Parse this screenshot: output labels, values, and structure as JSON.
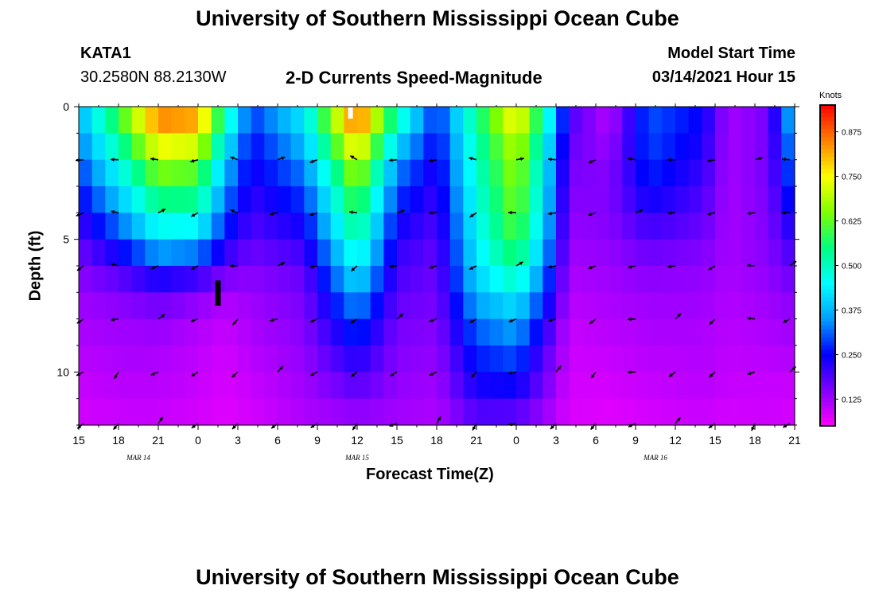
{
  "header": {
    "title": "University of Southern Mississippi Ocean Cube",
    "station": "KATA1",
    "coords": "30.2580N 88.2130W",
    "product": "2-D Currents Speed-Magnitude",
    "model_start_label": "Model Start Time",
    "model_start_value": "03/14/2021 Hour 15"
  },
  "footer": {
    "title": "University of Southern Mississippi Ocean Cube"
  },
  "colorbar": {
    "unit": "Knots",
    "ticks": [
      "0.875",
      "0.750",
      "0.625",
      "0.500",
      "0.375",
      "0.250",
      "0.125"
    ],
    "tick_values": [
      0.875,
      0.75,
      0.625,
      0.5,
      0.375,
      0.25,
      0.125
    ],
    "range": [
      0.05,
      0.95
    ],
    "colors": [
      "#ff00ff",
      "#8000ff",
      "#0000ff",
      "#00a0ff",
      "#00ffff",
      "#00ff80",
      "#80ff00",
      "#ffff00",
      "#ff8000",
      "#ff0000"
    ]
  },
  "chart_data": {
    "type": "heatmap",
    "xlabel": "Forecast Time(Z)",
    "ylabel": "Depth (ft)",
    "x_tick_labels": [
      "15",
      "18",
      "21",
      "0",
      "3",
      "6",
      "9",
      "12",
      "15",
      "18",
      "21",
      "0",
      "3",
      "6",
      "9",
      "12",
      "15",
      "18",
      "21"
    ],
    "x_hours": [
      0,
      3,
      6,
      9,
      12,
      15,
      18,
      21,
      24,
      27,
      30,
      33,
      36,
      39,
      42,
      45,
      48,
      51,
      54
    ],
    "date_labels": [
      {
        "text": "MAR 14",
        "hour": 4.5
      },
      {
        "text": "MAR 15",
        "hour": 21
      },
      {
        "text": "MAR 16",
        "hour": 43.5
      }
    ],
    "y_ticks": [
      "0",
      "5",
      "10"
    ],
    "y_tick_values": [
      0,
      5,
      10
    ],
    "ylim": [
      0,
      12
    ],
    "xlim": [
      0,
      54
    ],
    "keyframes": [
      {
        "h": 0,
        "v": [
          0.38,
          0.34,
          0.3,
          0.26,
          0.22,
          0.18,
          0.15,
          0.13,
          0.12,
          0.11,
          0.1,
          0.09,
          0.08
        ]
      },
      {
        "h": 3,
        "v": [
          0.62,
          0.55,
          0.48,
          0.42,
          0.35,
          0.28,
          0.2,
          0.15,
          0.13,
          0.12,
          0.11,
          0.1,
          0.09
        ]
      },
      {
        "h": 6,
        "v": [
          0.88,
          0.8,
          0.68,
          0.6,
          0.5,
          0.42,
          0.28,
          0.18,
          0.14,
          0.12,
          0.11,
          0.1,
          0.09
        ]
      },
      {
        "h": 9,
        "v": [
          0.85,
          0.78,
          0.65,
          0.58,
          0.5,
          0.4,
          0.25,
          0.15,
          0.12,
          0.1,
          0.1,
          0.09,
          0.08
        ]
      },
      {
        "h": 11,
        "v": [
          0.55,
          0.48,
          0.4,
          0.35,
          0.3,
          0.25,
          0.18,
          0.12,
          0.1,
          0.09,
          0.08,
          0.08,
          0.07
        ]
      },
      {
        "h": 13,
        "v": [
          0.3,
          0.26,
          0.24,
          0.22,
          0.2,
          0.18,
          0.15,
          0.13,
          0.12,
          0.11,
          0.1,
          0.09,
          0.08
        ]
      },
      {
        "h": 17,
        "v": [
          0.45,
          0.4,
          0.35,
          0.3,
          0.26,
          0.22,
          0.18,
          0.16,
          0.15,
          0.14,
          0.13,
          0.12,
          0.11
        ]
      },
      {
        "h": 21,
        "v": [
          0.92,
          0.82,
          0.72,
          0.64,
          0.58,
          0.52,
          0.45,
          0.38,
          0.3,
          0.25,
          0.2,
          0.16,
          0.12
        ]
      },
      {
        "h": 24,
        "v": [
          0.55,
          0.45,
          0.36,
          0.3,
          0.26,
          0.22,
          0.2,
          0.18,
          0.16,
          0.15,
          0.14,
          0.13,
          0.12
        ]
      },
      {
        "h": 27,
        "v": [
          0.28,
          0.25,
          0.23,
          0.21,
          0.2,
          0.18,
          0.17,
          0.16,
          0.15,
          0.14,
          0.13,
          0.12,
          0.11
        ]
      },
      {
        "h": 30,
        "v": [
          0.55,
          0.52,
          0.5,
          0.48,
          0.46,
          0.44,
          0.42,
          0.38,
          0.33,
          0.28,
          0.25,
          0.22,
          0.16
        ]
      },
      {
        "h": 33,
        "v": [
          0.8,
          0.72,
          0.68,
          0.66,
          0.64,
          0.6,
          0.55,
          0.45,
          0.38,
          0.32,
          0.27,
          0.22,
          0.15
        ]
      },
      {
        "h": 35,
        "v": [
          0.55,
          0.5,
          0.46,
          0.44,
          0.42,
          0.4,
          0.35,
          0.3,
          0.25,
          0.2,
          0.18,
          0.15,
          0.12
        ]
      },
      {
        "h": 37,
        "v": [
          0.2,
          0.18,
          0.16,
          0.15,
          0.14,
          0.13,
          0.12,
          0.11,
          0.1,
          0.09,
          0.09,
          0.08,
          0.08
        ]
      },
      {
        "h": 40,
        "v": [
          0.1,
          0.12,
          0.14,
          0.15,
          0.15,
          0.14,
          0.13,
          0.12,
          0.11,
          0.1,
          0.09,
          0.08,
          0.07
        ]
      },
      {
        "h": 43,
        "v": [
          0.3,
          0.3,
          0.28,
          0.26,
          0.22,
          0.18,
          0.15,
          0.13,
          0.12,
          0.11,
          0.1,
          0.09,
          0.08
        ]
      },
      {
        "h": 47,
        "v": [
          0.25,
          0.24,
          0.22,
          0.2,
          0.18,
          0.16,
          0.14,
          0.13,
          0.12,
          0.11,
          0.11,
          0.1,
          0.09
        ]
      },
      {
        "h": 49,
        "v": [
          0.12,
          0.12,
          0.12,
          0.12,
          0.12,
          0.12,
          0.12,
          0.11,
          0.11,
          0.1,
          0.1,
          0.09,
          0.08
        ]
      },
      {
        "h": 52,
        "v": [
          0.16,
          0.16,
          0.16,
          0.16,
          0.15,
          0.15,
          0.14,
          0.13,
          0.12,
          0.11,
          0.1,
          0.09,
          0.09
        ]
      },
      {
        "h": 54,
        "v": [
          0.42,
          0.38,
          0.34,
          0.3,
          0.26,
          0.22,
          0.18,
          0.15,
          0.13,
          0.12,
          0.1,
          0.09,
          0.08
        ]
      }
    ],
    "arrow_depths": [
      2,
      4,
      6,
      8,
      10,
      12
    ],
    "arrow_hours": [
      0,
      3,
      6,
      9,
      12,
      15,
      18,
      21,
      24,
      27,
      30,
      33,
      36,
      39,
      42,
      45,
      48,
      51,
      54
    ]
  }
}
